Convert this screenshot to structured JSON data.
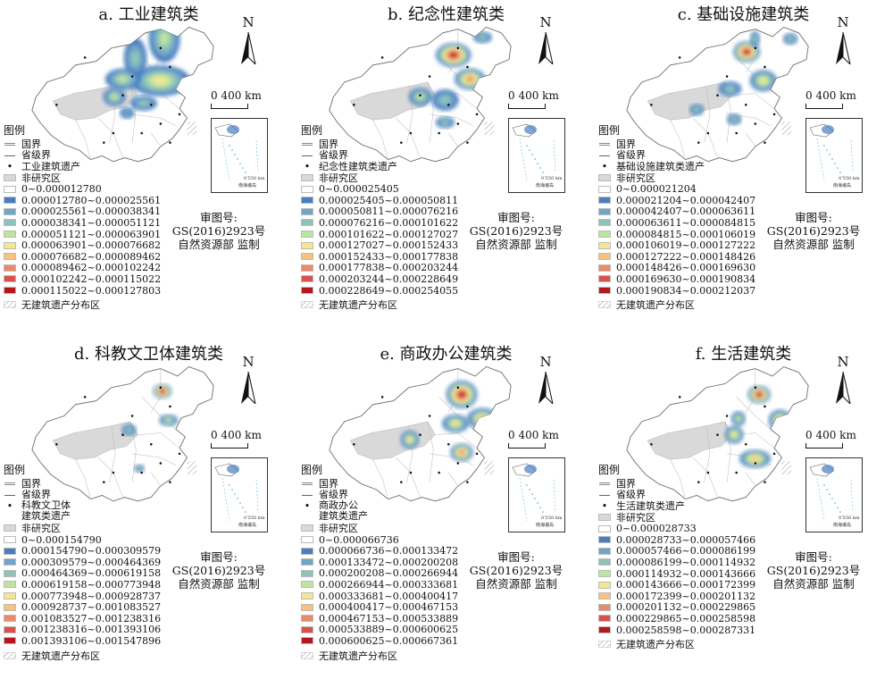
{
  "panels": [
    {
      "id": "a",
      "title": "a. 工业建筑类",
      "heritage_label": "工业建筑遗产",
      "ranges": [
        "0~0.000012780",
        "0.000012780~0.000025561",
        "0.000025561~0.000038341",
        "0.000038341~0.000051121",
        "0.000051121~0.000063901",
        "0.000063901~0.000076682",
        "0.000076682~0.000089462",
        "0.000089462~0.000102242",
        "0.000102242~0.000115022",
        "0.000115022~0.000127803"
      ]
    },
    {
      "id": "b",
      "title": "b. 纪念性建筑类",
      "heritage_label": "纪念性建筑类遗产",
      "ranges": [
        "0~0.000025405",
        "0.000025405~0.000050811",
        "0.000050811~0.000076216",
        "0.000076216~0.000101622",
        "0.000101622~0.000127027",
        "0.000127027~0.000152433",
        "0.000152433~0.000177838",
        "0.000177838~0.000203244",
        "0.000203244~0.000228649",
        "0.000228649~0.000254055"
      ]
    },
    {
      "id": "c",
      "title": "c. 基础设施建筑类",
      "heritage_label": "基础设施建筑类遗产",
      "ranges": [
        "0~0.000021204",
        "0.000021204~0.000042407",
        "0.000042407~0.000063611",
        "0.000063611~0.000084815",
        "0.000084815~0.000106019",
        "0.000106019~0.000127222",
        "0.000127222~0.000148426",
        "0.000148426~0.000169630",
        "0.000169630~0.000190834",
        "0.000190834~0.000212037"
      ]
    },
    {
      "id": "d",
      "title": "d. 科教文卫体建筑类",
      "heritage_label": "科教文卫体\n建筑类遗产",
      "ranges": [
        "0~0.000154790",
        "0.000154790~0.000309579",
        "0.000309579~0.000464369",
        "0.000464369~0.000619158",
        "0.000619158~0.000773948",
        "0.000773948~0.000928737",
        "0.000928737~0.001083527",
        "0.001083527~0.001238316",
        "0.001238316~0.001393106",
        "0.001393106~0.001547896"
      ]
    },
    {
      "id": "e",
      "title": "e. 商政办公建筑类",
      "heritage_label": "商政办公\n建筑类遗产",
      "ranges": [
        "0~0.000066736",
        "0.000066736~0.000133472",
        "0.000133472~0.000200208",
        "0.000200208~0.000266944",
        "0.000266944~0.000333681",
        "0.000333681~0.000400417",
        "0.000400417~0.000467153",
        "0.000467153~0.000533889",
        "0.000533889~0.000600625",
        "0.000600625~0.000667361"
      ]
    },
    {
      "id": "f",
      "title": "f. 生活建筑类",
      "heritage_label": "生活建筑类遗产",
      "ranges": [
        "0~0.000028733",
        "0.000028733~0.000057466",
        "0.000057466~0.000086199",
        "0.000086199~0.000114932",
        "0.000114932~0.000143666",
        "0.000143666~0.000172399",
        "0.000172399~0.000201132",
        "0.000201132~0.000229865",
        "0.000229865~0.000258598",
        "0.000258598~0.000287331"
      ]
    }
  ],
  "common": {
    "legend_title": "图例",
    "national_border": "国界",
    "provincial_border": "省级界",
    "non_study_area": "非研究区",
    "no_heritage_area": "无建筑遗产分布区",
    "north": "N",
    "scale_label": "0  400 km",
    "approval_line1": "审图号:",
    "approval_line2": "GS(2016)2923号",
    "approval_line3": "自然资源部 监制",
    "inset_scale": "0  250 km",
    "inset_label": "南海诸岛"
  },
  "colors": {
    "ramp": [
      "#ffffff",
      "#4a7ec0",
      "#6fa6c8",
      "#8fc3b8",
      "#bfe3a0",
      "#f1e88f",
      "#f6c27e",
      "#e98a6a",
      "#d9534c",
      "#b5171e"
    ],
    "non_study": "#d9d9d9",
    "hatch": "#999999"
  },
  "hotspots": {
    "a": [
      [
        0.68,
        0.38,
        0.14,
        0.09,
        5
      ],
      [
        0.56,
        0.24,
        0.05,
        0.12,
        3
      ],
      [
        0.7,
        0.12,
        0.07,
        0.14,
        4
      ],
      [
        0.5,
        0.37,
        0.08,
        0.06,
        4
      ],
      [
        0.46,
        0.48,
        0.05,
        0.05,
        4
      ],
      [
        0.6,
        0.52,
        0.06,
        0.04,
        3
      ],
      [
        0.52,
        0.58,
        0.03,
        0.03,
        2
      ]
    ],
    "b": [
      [
        0.66,
        0.22,
        0.08,
        0.07,
        9
      ],
      [
        0.74,
        0.37,
        0.07,
        0.06,
        7
      ],
      [
        0.5,
        0.48,
        0.05,
        0.05,
        4
      ],
      [
        0.62,
        0.5,
        0.06,
        0.06,
        3
      ],
      [
        0.8,
        0.11,
        0.04,
        0.03,
        3
      ],
      [
        0.62,
        0.64,
        0.04,
        0.03,
        3
      ],
      [
        0.18,
        0.15,
        0.02,
        0.02,
        2
      ]
    ],
    "c": [
      [
        0.64,
        0.2,
        0.06,
        0.06,
        9
      ],
      [
        0.72,
        0.38,
        0.06,
        0.06,
        5
      ],
      [
        0.56,
        0.43,
        0.05,
        0.04,
        3
      ],
      [
        0.58,
        0.62,
        0.03,
        0.03,
        3
      ],
      [
        0.4,
        0.56,
        0.03,
        0.03,
        3
      ],
      [
        0.85,
        0.12,
        0.03,
        0.03,
        3
      ],
      [
        0.68,
        0.12,
        0.02,
        0.04,
        3
      ]
    ],
    "d": [
      [
        0.69,
        0.2,
        0.04,
        0.04,
        9
      ],
      [
        0.72,
        0.38,
        0.04,
        0.03,
        4
      ],
      [
        0.53,
        0.44,
        0.03,
        0.03,
        3
      ],
      [
        0.58,
        0.68,
        0.02,
        0.02,
        3
      ]
    ],
    "e": [
      [
        0.7,
        0.22,
        0.07,
        0.08,
        9
      ],
      [
        0.8,
        0.37,
        0.07,
        0.06,
        6
      ],
      [
        0.67,
        0.4,
        0.06,
        0.05,
        5
      ],
      [
        0.45,
        0.5,
        0.04,
        0.05,
        5
      ],
      [
        0.7,
        0.58,
        0.05,
        0.05,
        7
      ]
    ],
    "f": [
      [
        0.7,
        0.22,
        0.05,
        0.05,
        9
      ],
      [
        0.8,
        0.38,
        0.05,
        0.06,
        6
      ],
      [
        0.6,
        0.37,
        0.03,
        0.04,
        4
      ],
      [
        0.58,
        0.47,
        0.04,
        0.05,
        5
      ],
      [
        0.68,
        0.62,
        0.07,
        0.05,
        6
      ]
    ]
  }
}
